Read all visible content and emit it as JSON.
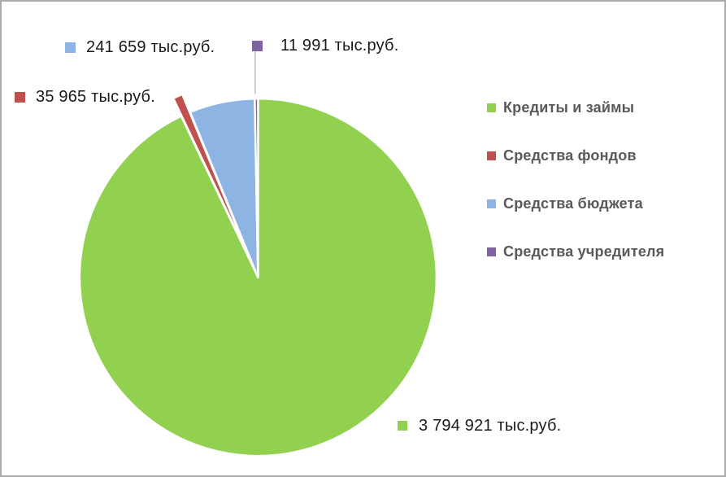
{
  "chart_data": {
    "type": "pie",
    "title": "",
    "unit": "тыс.руб.",
    "legend_position": "right",
    "direction": "clockwise",
    "start_angle_deg": 0,
    "total": 4084536,
    "series": [
      {
        "name": "Кредиты и займы",
        "value": 3794921,
        "color": "#92D050",
        "data_label": "3 794 921 тыс.руб.",
        "exploded": false
      },
      {
        "name": "Средства фондов",
        "value": 35965,
        "color": "#C0504D",
        "data_label": "35 965 тыс.руб.",
        "exploded": true
      },
      {
        "name": "Средства бюджета",
        "value": 241659,
        "color": "#8EB4E3",
        "data_label": "241 659 тыс.руб.",
        "exploded": false
      },
      {
        "name": "Средства учредителя",
        "value": 11991,
        "color": "#8064A2",
        "data_label": "11 991 тыс.руб.",
        "exploded": false
      }
    ]
  },
  "colors": {
    "background": "#FFFFFF",
    "frame_border": "#ABABAB",
    "slice_border": "#FFFFFF",
    "label_text": "#1A1A1A",
    "legend_text": "#595959",
    "leader_line": "#B3A2C7"
  }
}
